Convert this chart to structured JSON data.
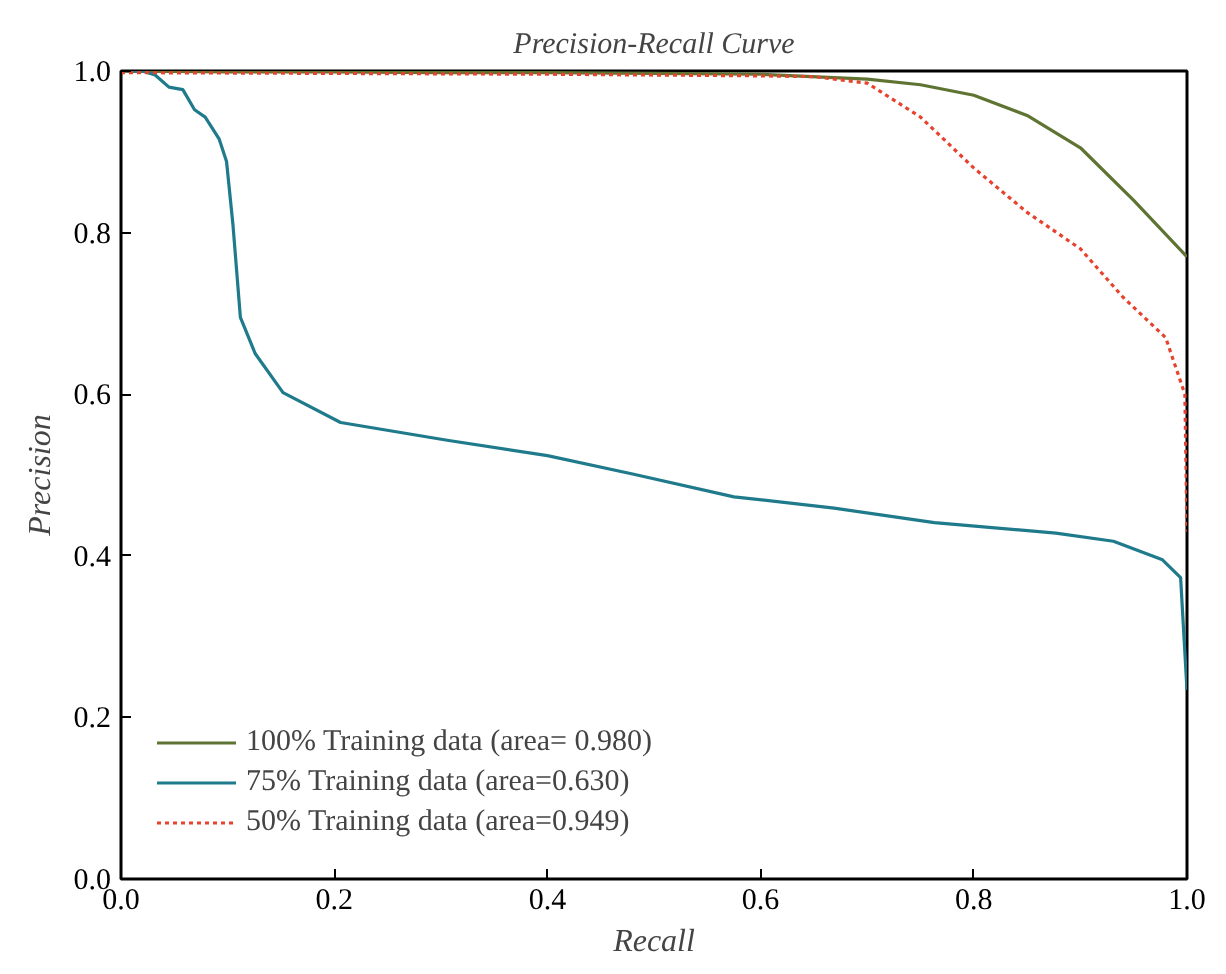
{
  "chart_data": {
    "type": "line",
    "title": "Precision-Recall Curve",
    "xlabel": "Recall",
    "ylabel": "Precision",
    "xlim": [
      0,
      1
    ],
    "ylim": [
      0,
      1
    ],
    "xticks": [
      {
        "value": 0,
        "label": "0.0"
      },
      0.2,
      0.4,
      0.6,
      0.8,
      {
        "value": 1,
        "label": "1.0"
      }
    ],
    "yticks": [
      {
        "value": 0,
        "label": "0.0"
      },
      0.2,
      0.4,
      0.6,
      0.8,
      {
        "value": 1,
        "label": "1.0"
      }
    ],
    "grid": false,
    "legend": "bottom left",
    "line_style": "solid",
    "series": [
      {
        "name": "100% Training data (area= 0.980)",
        "color": "#5f7433",
        "x": [
          0,
          0.1,
          0.2,
          0.3,
          0.4,
          0.5,
          0.6,
          0.7,
          0.75,
          0.8,
          0.85,
          0.9,
          0.95,
          1.0
        ],
        "values": [
          1.0,
          0.999,
          0.999,
          0.998,
          0.998,
          0.997,
          0.996,
          0.99,
          0.983,
          0.97,
          0.945,
          0.905,
          0.84,
          0.77
        ]
      },
      {
        "name": "75% Training data (area=0.630)",
        "color": "#1f7a8c",
        "x": [
          0,
          0.02,
          0.032,
          0.045,
          0.058,
          0.069,
          0.079,
          0.092,
          0.099,
          0.105,
          0.112,
          0.126,
          0.152,
          0.206,
          0.306,
          0.4,
          0.481,
          0.575,
          0.669,
          0.763,
          0.877,
          0.931,
          0.977,
          0.994,
          1.0
        ],
        "values": [
          1.0,
          1.0,
          0.995,
          0.98,
          0.977,
          0.952,
          0.943,
          0.916,
          0.888,
          0.81,
          0.695,
          0.65,
          0.602,
          0.565,
          0.543,
          0.524,
          0.501,
          0.473,
          0.459,
          0.441,
          0.428,
          0.418,
          0.395,
          0.373,
          0.234
        ]
      },
      {
        "name": "50% Training data (area=0.949)",
        "color": "#e8412c",
        "line_style": "dotted",
        "x": [
          0,
          0.2,
          0.4,
          0.6,
          0.65,
          0.7,
          0.75,
          0.8,
          0.85,
          0.9,
          0.94,
          0.98,
          0.998,
          1.0
        ],
        "values": [
          0.998,
          0.997,
          0.996,
          0.994,
          0.993,
          0.985,
          0.943,
          0.88,
          0.825,
          0.78,
          0.72,
          0.67,
          0.6,
          0.43
        ]
      }
    ]
  }
}
